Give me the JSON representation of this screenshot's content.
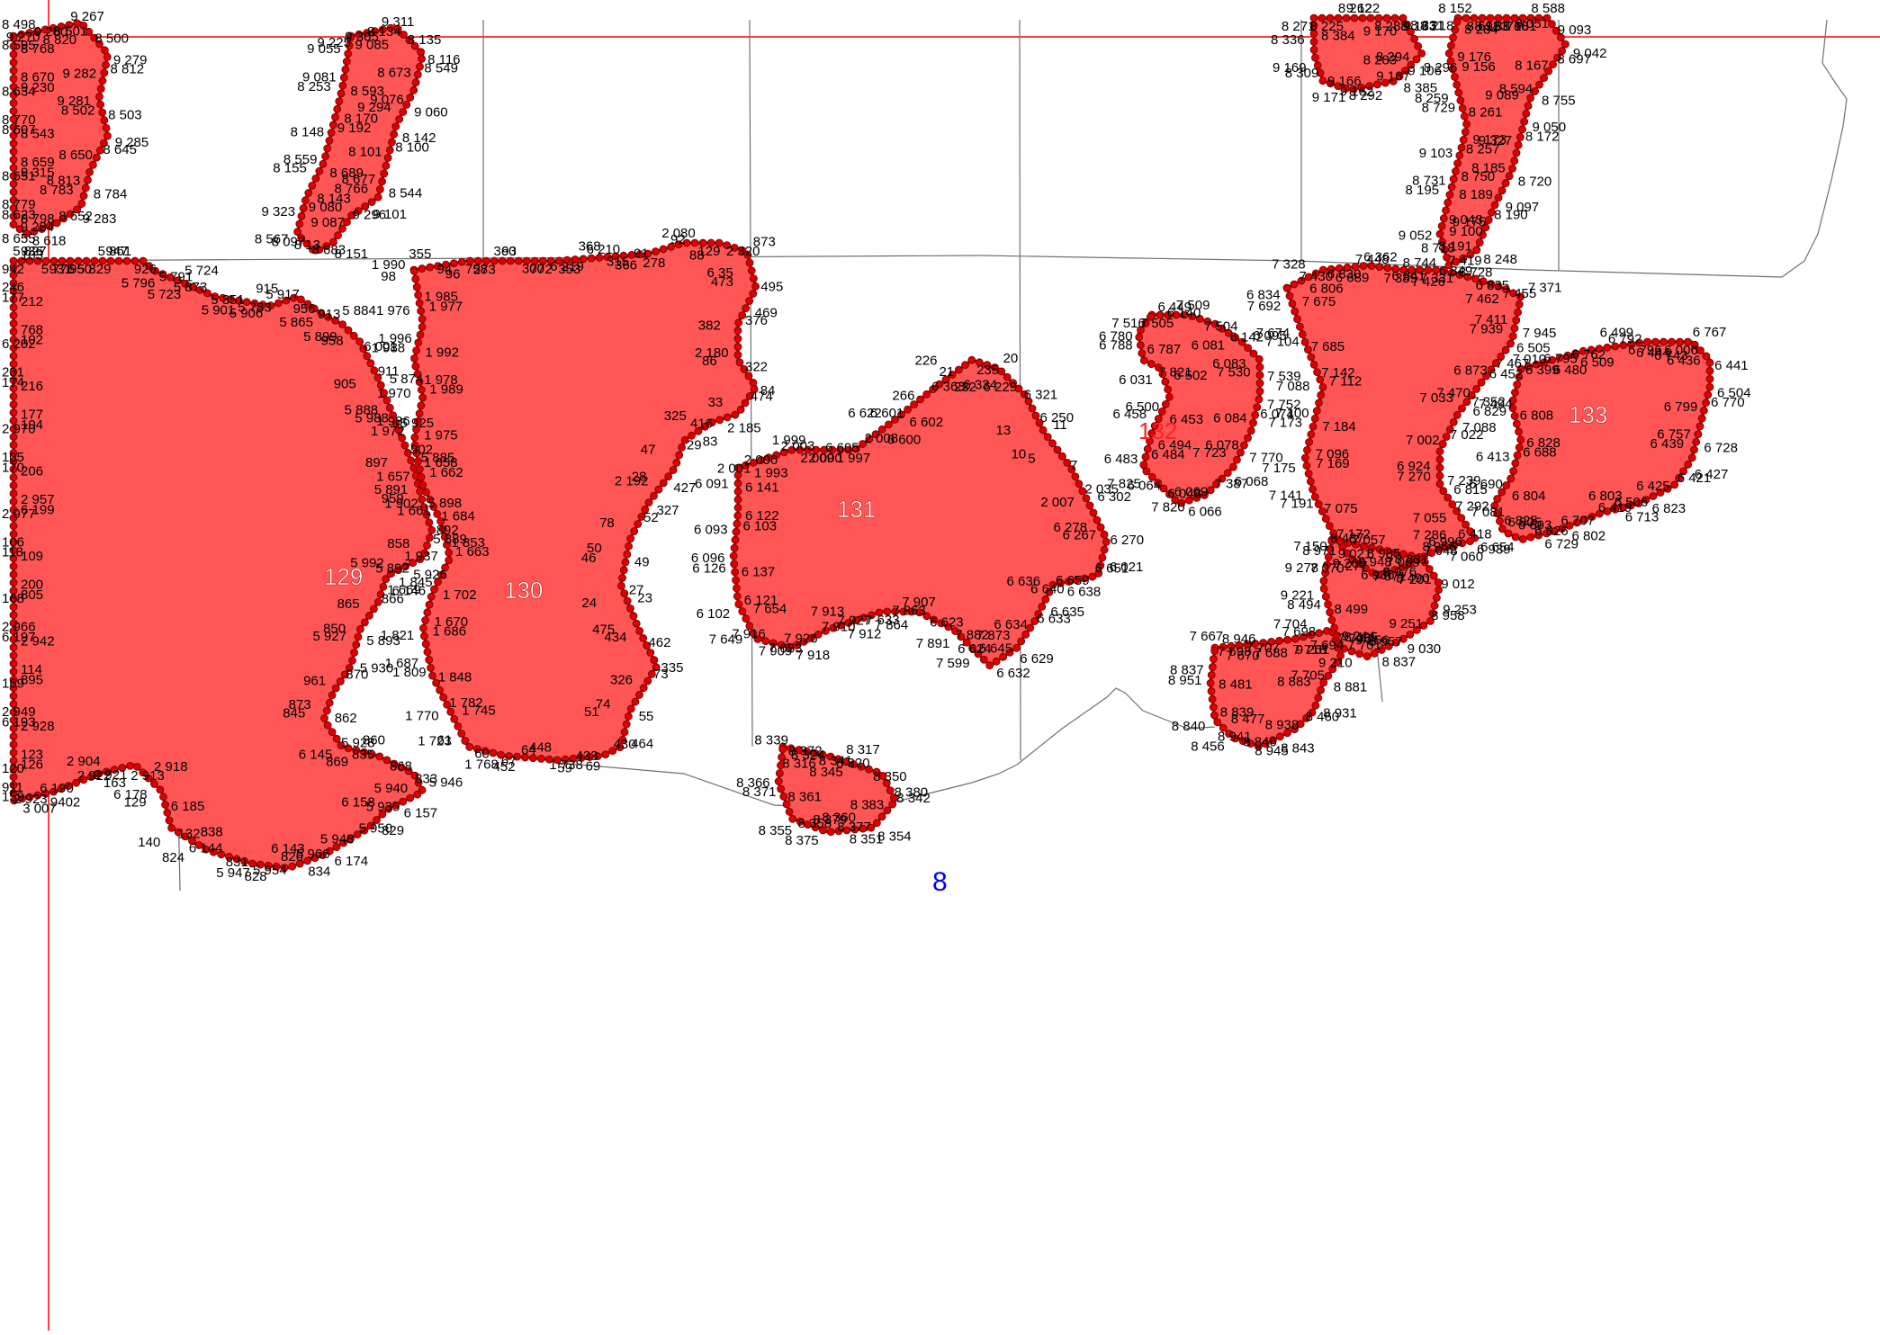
{
  "map": {
    "colors": {
      "parcel_fill": "#ff5555",
      "vertex": "#dd0000",
      "vertex_stroke": "#660000",
      "vertex_label": "#000000",
      "parcel_label": "#ffffff",
      "highlight_label": "#ff2020",
      "sheet_label": "#0000ff",
      "guide_line": "#ff0000",
      "boundary_line": "#707070"
    },
    "sheet_number": "8",
    "parcel_labels": [
      {
        "id": "p129",
        "text": "129"
      },
      {
        "id": "p130",
        "text": "130"
      },
      {
        "id": "p131",
        "text": "131"
      },
      {
        "id": "p132",
        "text": "132",
        "highlight": true
      },
      {
        "id": "p133",
        "text": "133"
      }
    ],
    "vertex_labels": [
      "936",
      "942",
      "931",
      "5 827",
      "5 829",
      "5 776",
      "947",
      "950",
      "926",
      "5 861",
      "5 791",
      "5 796",
      "5 724",
      "5 723",
      "5 851",
      "5 873",
      "5 783",
      "5 901",
      "5 917",
      "5 906",
      "956",
      "915",
      "913",
      "5 865",
      "5 884",
      "5 899",
      "6 001",
      "958",
      "911",
      "905",
      "5 874",
      "5 888",
      "5 925",
      "5 988",
      "902",
      "897",
      "5 885",
      "5 891",
      "5 898",
      "959",
      "892",
      "858",
      "5 889",
      "5 892",
      "5 926",
      "5 992",
      "6 146",
      "865",
      "866",
      "850",
      "5 893",
      "5 927",
      "5 930",
      "961",
      "870",
      "873",
      "862",
      "845",
      "5 928",
      "6 145",
      "860",
      "869",
      "868",
      "835",
      "833",
      "5 940",
      "5 946",
      "5 935",
      "6 157",
      "6 158",
      "829",
      "5 948",
      "5 950",
      "5 966",
      "6 174",
      "6 143",
      "834",
      "828",
      "826",
      "5 947",
      "5 954",
      "6 144",
      "831",
      "824",
      "838",
      "140",
      "132",
      "129",
      "6 185",
      "6 178",
      "2 918",
      "2 921",
      "2 913",
      "2 904",
      "163",
      "6 190",
      "2 922",
      "2 923",
      "9402",
      "911",
      "3 007",
      "159",
      "126",
      "120",
      "123",
      "6 193",
      "2 928",
      "2 949",
      "895",
      "169",
      "114",
      "6 197",
      "2 942",
      "2 966",
      "805",
      "168",
      "200",
      "118",
      "109",
      "106",
      "6 199",
      "2 977",
      "2 957",
      "170",
      "206",
      "105",
      "104",
      "2 970",
      "177",
      "174",
      "216",
      "231",
      "102",
      "6 202",
      "768",
      "177",
      "212",
      "246",
      "103",
      "98",
      "96",
      "355",
      "273",
      "94",
      "93",
      "758",
      "772",
      "360",
      "353",
      "300",
      "6 210",
      "6 219",
      "366",
      "368",
      "278",
      "315",
      "92",
      "91",
      "129",
      "2 080",
      "2 320",
      "88",
      "873",
      "6 35",
      "495",
      "473",
      "469",
      "382",
      "376",
      "2 180",
      "322",
      "86",
      "84",
      "33",
      "474",
      "416",
      "2 185",
      "325",
      "83",
      "47",
      "29",
      "28",
      "427",
      "2 192",
      "327",
      "78",
      "52",
      "50",
      "49",
      "46",
      "27",
      "24",
      "23",
      "475",
      "462",
      "434",
      "335",
      "326",
      "73",
      "74",
      "55",
      "51",
      "464",
      "433",
      "430",
      "1 738",
      "69",
      "64",
      "59",
      "452",
      "448",
      "1 768",
      "67",
      "61",
      "60",
      "1 723",
      "1 745",
      "1 770",
      "1 782",
      "1 809",
      "1 848",
      "1 687",
      "1 686",
      "1 821",
      "1 670",
      "1 669",
      "1 702",
      "1 845",
      "1 663",
      "1 937",
      "1 853",
      "1 661",
      "1 684",
      "1 902",
      "1 662",
      "1 657",
      "1 658",
      "1 972",
      "1 975",
      "1 986",
      "1 989",
      "1 970",
      "1 978",
      "1 988",
      "1 992",
      "1 996",
      "1 977",
      "1 976",
      "1 985",
      "1 990",
      "1 993",
      "2 001",
      "2 003",
      "2 006",
      "2 000",
      "1 999",
      "1 997",
      "2 009",
      "2 008",
      "6 605",
      "6 600",
      "6 622",
      "6 602",
      "6 601",
      "6 363",
      "266",
      "232",
      "226",
      "235",
      "21",
      "20",
      "6 334",
      "6 321",
      "6 229",
      "6 250",
      "13",
      "11",
      "10",
      "7",
      "5",
      "2 035",
      "2 007",
      "6 302",
      "6 278",
      "6 270",
      "6 267",
      "6 021",
      "6 659",
      "6 651",
      "6 640",
      "6 638",
      "6 636",
      "6 635",
      "6 634",
      "6 633",
      "6 645",
      "6 629",
      "6 624",
      "6 632",
      "7 599",
      "7 873",
      "7 891",
      "7 882",
      "7 863",
      "6 623",
      "7 633",
      "7 907",
      "7 927",
      "7 864",
      "7 913",
      "7 912",
      "7 926",
      "7 910",
      "7 909",
      "7 918",
      "7 916",
      "7 653",
      "7 649",
      "7 654",
      "6 102",
      "6 121",
      "6 126",
      "6 137",
      "6 096",
      "6 103",
      "6 093",
      "6 122",
      "6 091",
      "6 141",
      "7 516",
      "7 509",
      "7 505",
      "7 504",
      "6 140",
      "6 142",
      "6 081",
      "6 095",
      "6 083",
      "7 539",
      "7 530",
      "7 752",
      "6 084",
      "6 074",
      "6 078",
      "7 770",
      "7 723",
      "6 068",
      "6 069",
      "7 387",
      "7 820",
      "6 066",
      "6 064",
      "6 048",
      "7 825",
      "6 484",
      "6 483",
      "6 494",
      "6 458",
      "6 453",
      "6 500",
      "6 502",
      "6 031",
      "7 821",
      "6 788",
      "6 787",
      "6 780",
      "6 449",
      "6 452",
      "6 480",
      "6 505",
      "6 509",
      "6 795",
      "6 792",
      "6 762",
      "6 444",
      "6 499",
      "6 006",
      "6 796",
      "6 767",
      "6 743",
      "6 441",
      "6 436",
      "6 504",
      "6 799",
      "6 770",
      "6 757",
      "6 728",
      "6 439",
      "6 427",
      "6 425",
      "6 421",
      "6 506",
      "6 823",
      "6 803",
      "6 713",
      "6 707",
      "6 419",
      "6 826",
      "6 802",
      "6 805",
      "6 729",
      "6 654",
      "6 693",
      "6 418",
      "6 825",
      "6 815",
      "6 804",
      "6 690",
      "6 688",
      "6 413",
      "6 828",
      "6 829",
      "6 808",
      "7 352",
      "6 399",
      "6 834",
      "6 806",
      "7 328",
      "6 689",
      "7 430",
      "6 362",
      "6 830",
      "6 841",
      "7 448",
      "7 331",
      "7 389",
      "7 419",
      "7 426",
      "6 835",
      "6 849",
      "7 455",
      "7 462",
      "7 371",
      "7 411",
      "7 945",
      "7 939",
      "7 010",
      "6 873",
      "7 467",
      "7 470",
      "7 494",
      "7 033",
      "7 088",
      "7 002",
      "7 022",
      "6 924",
      "7 239",
      "7 270",
      "7 292",
      "7 055",
      "7 081",
      "6 996",
      "6 939",
      "7 286",
      "7 060",
      "7 069",
      "7 048",
      "6 936",
      "7 201",
      "7 277",
      "7 071",
      "7 070",
      "7 057",
      "7 150",
      "7 172",
      "7 191",
      "7 075",
      "7 141",
      "7 169",
      "7 175",
      "7 096",
      "7 173",
      "7 184",
      "7 100",
      "7 112",
      "7 088",
      "7 142",
      "7 104",
      "7 685",
      "7 674",
      "7 675",
      "7 692",
      "7 670",
      "7 667",
      "7 688",
      "7 698",
      "7 698",
      "7 707",
      "7 694",
      "7 704",
      "7 706",
      "7 718",
      "7 701",
      "7 705",
      "8 881",
      "8 883",
      "8 931",
      "8 938",
      "8 460",
      "8 846",
      "8 843",
      "8 941",
      "8 945",
      "8 456",
      "8 477",
      "8 840",
      "8 839",
      "8 951",
      "8 481",
      "8 837",
      "8 946",
      "8 971",
      "8 985",
      "8 487",
      "8 831",
      "8 948",
      "8 956",
      "8 976",
      "9 012",
      "8 490",
      "9 253",
      "9 251",
      "8 958",
      "8 957",
      "9 030",
      "8 495",
      "8 837",
      "9 210",
      "9 256",
      "9 261",
      "9 244",
      "8 494",
      "8 499",
      "9 221",
      "9 269",
      "9 278",
      "9 021",
      "8 498",
      "8 820",
      "9 270",
      "9 267",
      "9 280",
      "8 500",
      "8 501",
      "9 279",
      "9 282",
      "8 812",
      "9 281",
      "8 503",
      "8 502",
      "9 285",
      "8 650",
      "8 645",
      "8 813",
      "8 784",
      "8 783",
      "9 283",
      "9 284",
      "8 652",
      "8 655",
      "8 618",
      "8 623",
      "8 798",
      "8 779",
      "9 315",
      "8 651",
      "8 659",
      "8 607",
      "8 543",
      "8 770",
      "9 230",
      "8 634",
      "8 670",
      "8 595",
      "8 768",
      "9 225",
      "9 311",
      "9 305",
      "8 135",
      "8 134",
      "8 116",
      "8 673",
      "8 549",
      "9 076",
      "9 060",
      "9 294",
      "8 142",
      "8 101",
      "8 100",
      "8 677",
      "8 544",
      "8 766",
      "9 101",
      "9 087",
      "9 296",
      "8 13",
      "8 151",
      "8 097",
      "8 683",
      "8 567",
      "9 080",
      "9 323",
      "8 143",
      "8 155",
      "8 689",
      "8 559",
      "9 192",
      "8 148",
      "8 170",
      "8 253",
      "8 593",
      "9 081",
      "9 085",
      "9 055",
      "8 153",
      "8 152",
      "8 181",
      "8 692",
      "8 588",
      "8 760",
      "9 093",
      "9 051",
      "9 042",
      "8 167",
      "8 697",
      "8 594",
      "8 755",
      "9 089",
      "9 050",
      "9 327",
      "8 172",
      "8 185",
      "8 720",
      "8 750",
      "9 097",
      "9 043",
      "8 190",
      "8 191",
      "8 248",
      "8 718",
      "8 728",
      "8 744",
      "9 100",
      "9 052",
      "9 175",
      "8 195",
      "8 189",
      "8 731",
      "8 257",
      "9 103",
      "9 173",
      "8 729",
      "8 261",
      "8 259",
      "9 156",
      "9 106",
      "9 176",
      "8 231",
      "8 284",
      "8 271",
      "9 122",
      "8 225",
      "8 288",
      "8 262",
      "9 163",
      "9 170",
      "8 218",
      "8 294",
      "8 296",
      "8 283",
      "8 385",
      "9 162",
      "9 167",
      "9 171",
      "8 292",
      "8 309",
      "9 166",
      "9 169",
      "8 384",
      "8 336",
      "8 324",
      "8 339",
      "8 341",
      "8 316",
      "8 317",
      "8 345",
      "8 350",
      "8 320",
      "8 380",
      "8 383",
      "8 342",
      "8 377",
      "8 354",
      "8 379",
      "8 351",
      "8 375",
      "8 360",
      "8 355",
      "8 358",
      "8 371",
      "8 361",
      "8 366",
      "8 372"
    ]
  }
}
